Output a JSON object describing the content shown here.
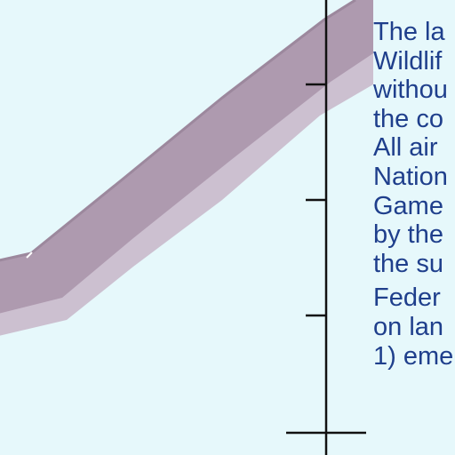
{
  "map": {
    "colors": {
      "background": "#e6f8fb",
      "route_fill": "#b29fb3",
      "route_shadow": "#c9b9c9",
      "route_highlight": "#9f8ca0",
      "scale_line": "#111111",
      "text": "#1f3f8c"
    },
    "features": [
      "boundary-route",
      "scale-bar",
      "tick-marks"
    ]
  },
  "note": {
    "lines": [
      "The la",
      "Wildlif",
      "withou",
      "the co",
      "All air",
      "Nation",
      "Game",
      "by the",
      "the su",
      "Feder",
      "on lan",
      "1) eme"
    ]
  }
}
